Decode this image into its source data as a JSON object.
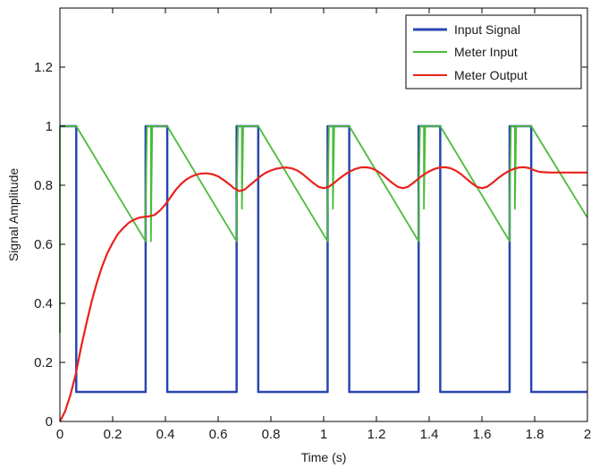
{
  "chart_data": {
    "type": "line",
    "title": "",
    "xlabel": "Time (s)",
    "ylabel": "Signal Amplitude",
    "xlim": [
      0,
      2
    ],
    "ylim": [
      0,
      1.4
    ],
    "xticks": [
      0,
      0.2,
      0.4,
      0.6,
      0.8,
      1,
      1.2,
      1.4,
      1.6,
      1.8,
      2
    ],
    "xtick_labels": [
      "0",
      "0.2",
      "0.4",
      "0.6",
      "0.8",
      "1",
      "1.2",
      "1.4",
      "1.6",
      "1.8",
      "2"
    ],
    "yticks": [
      0,
      0.2,
      0.4,
      0.6,
      0.8,
      1,
      1.2
    ],
    "ytick_labels": [
      "0",
      "0.2",
      "0.4",
      "0.6",
      "0.8",
      "1",
      "1.2"
    ],
    "grid": false,
    "legend_position": "top-right",
    "series": [
      {
        "name": "Input Signal",
        "color": "#2846b0",
        "x": [
          0,
          0.062,
          0.062,
          0.325,
          0.325,
          0.345,
          0.345,
          0.407,
          0.407,
          0.67,
          0.67,
          0.69,
          0.69,
          0.752,
          0.752,
          1.015,
          1.015,
          1.035,
          1.035,
          1.097,
          1.097,
          1.36,
          1.36,
          1.38,
          1.38,
          1.442,
          1.442,
          1.705,
          1.705,
          1.725,
          1.725,
          1.787,
          1.787,
          2.0
        ],
        "y": [
          1,
          1,
          0.1,
          0.1,
          1,
          1,
          1,
          1,
          0.1,
          0.1,
          1,
          1,
          1,
          1,
          0.1,
          0.1,
          1,
          1,
          1,
          1,
          0.1,
          0.1,
          1,
          1,
          1,
          1,
          0.1,
          0.1,
          1,
          1,
          1,
          1,
          0.1,
          0.1
        ]
      },
      {
        "name": "Meter Input",
        "color": "#4cbb3a",
        "x": [
          0,
          0,
          0.005,
          0.062,
          0.325,
          0.325,
          0.33,
          0.345,
          0.345,
          0.35,
          0.407,
          0.67,
          0.67,
          0.675,
          0.69,
          0.69,
          0.695,
          0.752,
          1.015,
          1.015,
          1.02,
          1.035,
          1.035,
          1.04,
          1.097,
          1.36,
          1.36,
          1.365,
          1.38,
          1.38,
          1.385,
          1.442,
          1.705,
          1.705,
          1.71,
          1.725,
          1.725,
          1.73,
          1.787,
          2.0
        ],
        "y": [
          0.3,
          0.998,
          1,
          1,
          0.61,
          0.72,
          1,
          1,
          0.61,
          1,
          1,
          0.61,
          0.72,
          1,
          1,
          0.72,
          1,
          1,
          0.61,
          0.72,
          1,
          1,
          0.72,
          1,
          1,
          0.61,
          0.72,
          1,
          1,
          0.72,
          1,
          1,
          0.61,
          0.72,
          1,
          1,
          0.72,
          1,
          1,
          0.69
        ]
      },
      {
        "name": "Meter Output",
        "color": "#e8231c",
        "x": [
          0,
          0.02,
          0.04,
          0.06,
          0.08,
          0.1,
          0.12,
          0.14,
          0.16,
          0.18,
          0.2,
          0.22,
          0.24,
          0.26,
          0.28,
          0.3,
          0.32,
          0.34,
          0.36,
          0.38,
          0.4,
          0.42,
          0.44,
          0.46,
          0.48,
          0.5,
          0.52,
          0.54,
          0.56,
          0.58,
          0.6,
          0.62,
          0.64,
          0.66,
          0.68,
          0.7,
          0.72,
          0.74,
          0.76,
          0.78,
          0.8,
          0.82,
          0.84,
          0.86,
          0.88,
          0.9,
          0.92,
          0.94,
          0.96,
          0.98,
          1.0,
          1.02,
          1.04,
          1.06,
          1.08,
          1.1,
          1.12,
          1.14,
          1.16,
          1.18,
          1.2,
          1.22,
          1.24,
          1.26,
          1.28,
          1.3,
          1.32,
          1.34,
          1.36,
          1.38,
          1.4,
          1.42,
          1.44,
          1.46,
          1.48,
          1.5,
          1.52,
          1.54,
          1.56,
          1.58,
          1.6,
          1.62,
          1.64,
          1.66,
          1.68,
          1.7,
          1.72,
          1.74,
          1.76,
          1.78,
          1.8,
          1.82,
          1.84,
          1.86,
          1.88,
          1.9,
          1.92,
          1.94,
          1.96,
          1.98,
          2.0
        ],
        "y": [
          0.0,
          0.035,
          0.09,
          0.16,
          0.25,
          0.33,
          0.405,
          0.47,
          0.525,
          0.57,
          0.605,
          0.635,
          0.655,
          0.672,
          0.683,
          0.69,
          0.693,
          0.695,
          0.7,
          0.715,
          0.735,
          0.76,
          0.785,
          0.805,
          0.82,
          0.83,
          0.837,
          0.84,
          0.84,
          0.837,
          0.83,
          0.818,
          0.805,
          0.79,
          0.78,
          0.785,
          0.8,
          0.815,
          0.83,
          0.842,
          0.85,
          0.856,
          0.859,
          0.86,
          0.857,
          0.85,
          0.838,
          0.823,
          0.808,
          0.795,
          0.79,
          0.795,
          0.808,
          0.823,
          0.836,
          0.847,
          0.855,
          0.86,
          0.861,
          0.858,
          0.85,
          0.838,
          0.823,
          0.808,
          0.795,
          0.79,
          0.795,
          0.808,
          0.823,
          0.836,
          0.847,
          0.855,
          0.86,
          0.861,
          0.858,
          0.85,
          0.838,
          0.823,
          0.808,
          0.795,
          0.79,
          0.795,
          0.808,
          0.823,
          0.836,
          0.847,
          0.855,
          0.86,
          0.861,
          0.858,
          0.85,
          0.845,
          0.844,
          0.843,
          0.843,
          0.843,
          0.843,
          0.843,
          0.843,
          0.843,
          0.843
        ]
      }
    ]
  }
}
